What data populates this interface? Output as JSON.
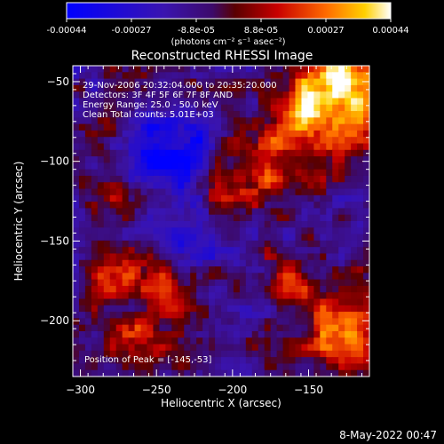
{
  "colorbar": {
    "ticks": [
      "-0.00044",
      "-0.00027",
      "-8.8e-05",
      "8.8e-05",
      "0.00027",
      "0.00044"
    ],
    "unit_label": "(photons cm⁻² s⁻¹ asec⁻²)"
  },
  "title": "Reconstructed RHESSI Image",
  "info": {
    "line1": "29-Nov-2006 20:32:04.000 to 20:35:20.000",
    "line2": "Detectors: 3F 4F 5F 6F 7F 8F AND",
    "line3": "Energy Range: 25.0 - 50.0 keV",
    "line4": "Clean     Total counts: 5.01E+03"
  },
  "peak_text": "Position of Peak = [-145,-53]",
  "timestamp": "8-May-2022 00:47",
  "chart_data": {
    "type": "heatmap",
    "title": "Reconstructed RHESSI Image",
    "xlabel": "Heliocentric X (arcsec)",
    "ylabel": "Heliocentric Y (arcsec)",
    "xlim": [
      -305,
      -110
    ],
    "ylim": [
      -235,
      -40
    ],
    "x_ticks": [
      -300,
      -250,
      -200,
      -150
    ],
    "x_tick_labels": [
      "−300",
      "−250",
      "−200",
      "−150"
    ],
    "y_ticks": [
      -50,
      -100,
      -150,
      -200
    ],
    "y_tick_labels": [
      "−50",
      "−100",
      "−150",
      "−200"
    ],
    "color_range": [
      -0.00044,
      0.00044
    ],
    "colormap": "blue-purple-red-yellow-white",
    "peak_position": [
      -145,
      -53
    ]
  }
}
